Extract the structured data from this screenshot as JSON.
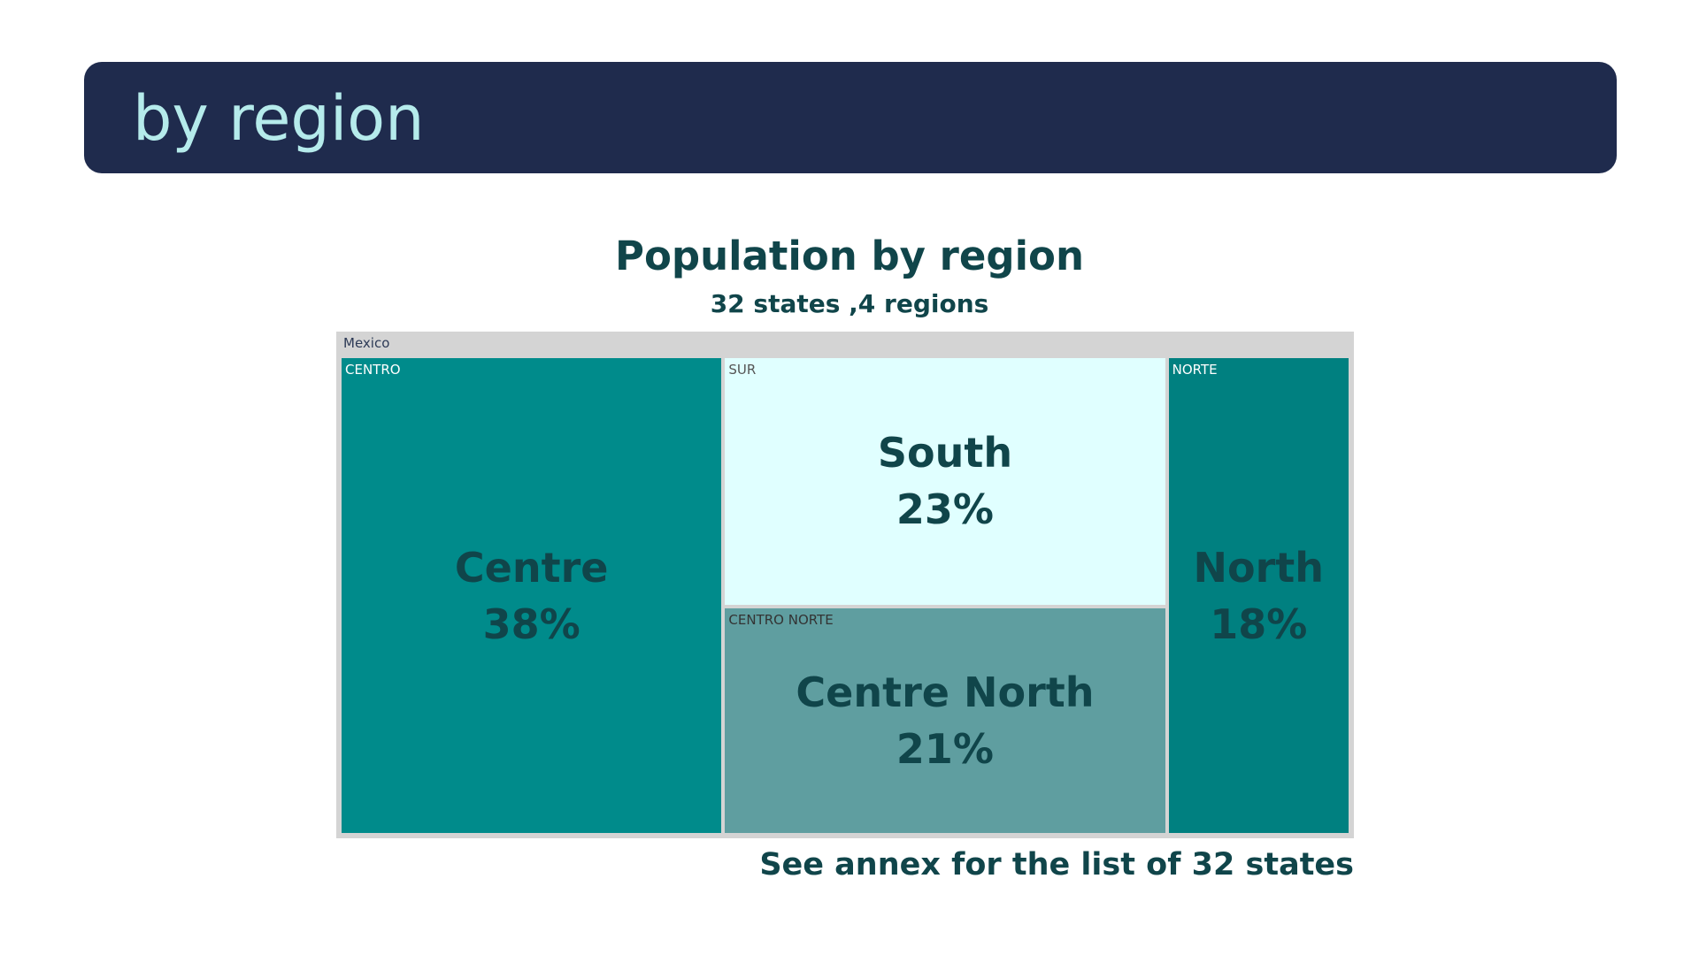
{
  "banner": {
    "title": "by region"
  },
  "chart_data": {
    "type": "treemap",
    "title": "Population by region",
    "subtitle": "32 states ,4 regions",
    "root": "Mexico",
    "items": [
      {
        "code": "CENTRO",
        "name": "Centre",
        "value": 38,
        "percent_label": "38%",
        "color": "#008b8b",
        "label_color": "#ffffff"
      },
      {
        "code": "SUR",
        "name": "South",
        "value": 23,
        "percent_label": "23%",
        "color": "#e0ffff",
        "label_color": "#555555"
      },
      {
        "code": "CENTRO NORTE",
        "name": "Centre North",
        "value": 21,
        "percent_label": "21%",
        "color": "#5f9ea0",
        "label_color": "#333333"
      },
      {
        "code": "NORTE",
        "name": "North",
        "value": 18,
        "percent_label": "18%",
        "color": "#008080",
        "label_color": "#ffffff"
      }
    ]
  },
  "footnote": "See annex for the list of  32 states"
}
